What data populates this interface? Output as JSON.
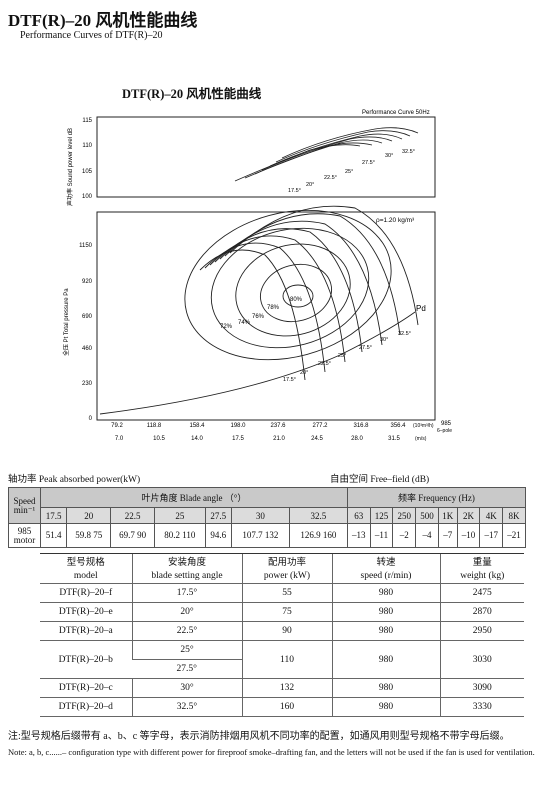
{
  "header": {
    "title": "DTF(R)–20 风机性能曲线",
    "subtitle": "Performance Curves of DTF(R)–20"
  },
  "chart_data": {
    "type": "line",
    "title": "DTF(R)–20 风机性能曲线",
    "curve_label": "Performance Curve 50Hz",
    "density_label": "ρ=1.20 kg/m³",
    "upper_ylabel": "声功率 Sound power level dB",
    "lower_ylabel": "全压 Pt Total pressure Pa",
    "upper_yticks": [
      "115",
      "110",
      "105",
      "100"
    ],
    "lower_yticks": [
      "1150",
      "920",
      "690",
      "460",
      "230",
      "0"
    ],
    "xticks_flow": [
      "79.2",
      "118.8",
      "158.4",
      "198.0",
      "237.6",
      "277.2",
      "316.8",
      "356.4"
    ],
    "xticks_speed": [
      "7.0",
      "10.5",
      "14.0",
      "17.5",
      "21.0",
      "24.5",
      "28.0",
      "31.5"
    ],
    "x_unit_flow": "(10³m³/h)",
    "x_unit_speed": "(m/s)",
    "speed_note": "985",
    "pole_note": "6–pole",
    "blade_angles": [
      "17.5°",
      "20°",
      "22.5°",
      "25°",
      "27.5°",
      "30°",
      "32.5°"
    ],
    "efficiency_labels": [
      "80%",
      "78%",
      "76%",
      "74%",
      "72%"
    ],
    "pd_label": "Pd"
  },
  "table1": {
    "label": "轴功率 Peak absorbed power(kW)",
    "right_label": "自由空间    Free–field    (dB)",
    "speed_header": "Speed min⁻¹",
    "blade_header": "叶片角度 Blade angle （°）",
    "freq_header": "频率 Frequency        (Hz)",
    "angles": [
      "17.5",
      "20",
      "22.5",
      "25",
      "27.5",
      "30",
      "32.5"
    ],
    "freqs": [
      "63",
      "125",
      "250",
      "500",
      "1K",
      "2K",
      "4K",
      "8K"
    ],
    "row_label": "985 motor",
    "powers": [
      "51.4",
      "59.8 75",
      "69.7 90",
      "80.2 110",
      "94.6",
      "107.7 132",
      "126.9 160"
    ],
    "db_values": [
      "–13",
      "–11",
      "–2",
      "–4",
      "–7",
      "–10",
      "–17",
      "–21"
    ]
  },
  "table2": {
    "headers_cn": [
      "型号规格",
      "安装角度",
      "配用功率",
      "转速",
      "重量"
    ],
    "headers_en": [
      "model",
      "blade setting angle",
      "power (kW)",
      "speed (r/min)",
      "weight (kg)"
    ],
    "rows": [
      {
        "model": "DTF(R)–20–f",
        "angle": "17.5°",
        "power": "55",
        "speed": "980",
        "weight": "2475"
      },
      {
        "model": "DTF(R)–20–e",
        "angle": "20°",
        "power": "75",
        "speed": "980",
        "weight": "2870"
      },
      {
        "model": "DTF(R)–20–a",
        "angle": "22.5°",
        "power": "90",
        "speed": "980",
        "weight": "2950"
      },
      {
        "model": "DTF(R)–20–b",
        "angle": "25°",
        "angle2": "27.5°",
        "power": "110",
        "speed": "980",
        "weight": "3030"
      },
      {
        "model": "DTF(R)–20–c",
        "angle": "30°",
        "power": "132",
        "speed": "980",
        "weight": "3090"
      },
      {
        "model": "DTF(R)–20–d",
        "angle": "32.5°",
        "power": "160",
        "speed": "980",
        "weight": "3330"
      }
    ]
  },
  "notes": {
    "cn": "注:型号规格后缀带有 a、b、c 等字母，表示消防排烟用风机不同功率的配置，如通风用则型号规格不带字母后缀。",
    "en": "Note: a, b, c......– configuration type with different power for fireproof smoke–drafting fan, and the letters will not be used if  the fan is used for ventilation."
  }
}
